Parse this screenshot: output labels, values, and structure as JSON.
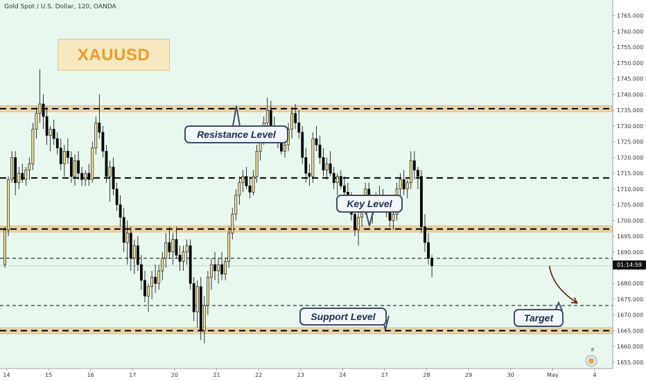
{
  "header": {
    "title": "Gold Spot / U.S. Dollar, 120, OANDA"
  },
  "symbol_label": "XAUUSD",
  "annotations": {
    "resistance": "Resistance Level",
    "key": "Key Level",
    "support": "Support Level",
    "target": "Target"
  },
  "price_tag": "01:14:59",
  "badge_count": "8",
  "colors": {
    "background": "#ffffff",
    "plot_background": "#e9f8ef",
    "zone_fill": "#e8d2a6",
    "bull_candle": "#f1dc9a",
    "bear_candle": "#000000",
    "dashed_line": "#000000",
    "callout_border": "#3b4c66",
    "callout_text": "#1c2d52",
    "symbol_text": "#f09a28",
    "arrow": "#5a1e0a"
  },
  "chart_data": {
    "type": "candlestick",
    "title": "Gold Spot / U.S. Dollar, 120, OANDA",
    "ylim": [
      1653,
      1770
    ],
    "y_ticks": [
      1655,
      1660,
      1665,
      1670,
      1675,
      1680,
      1685,
      1690,
      1695,
      1700,
      1705,
      1710,
      1715,
      1720,
      1725,
      1730,
      1735,
      1740,
      1745,
      1750,
      1755,
      1760,
      1765
    ],
    "y_tick_labels": [
      "1655.000",
      "1660.000",
      "1665.000",
      "1670.000",
      "1675.000",
      "1680.000",
      "1685.000",
      "1690.000",
      "1695.000",
      "1700.000",
      "1705.000",
      "1710.000",
      "1715.000",
      "1720.000",
      "1725.000",
      "1730.000",
      "1735.000",
      "1740.000",
      "1745.000",
      "1750.000",
      "1755.000",
      "1760.000",
      "1765.000"
    ],
    "x_ticks": [
      {
        "label": "14",
        "pos": 0.5
      },
      {
        "label": "15",
        "pos": 12.5
      },
      {
        "label": "16",
        "pos": 24.5
      },
      {
        "label": "17",
        "pos": 36.5
      },
      {
        "label": "20",
        "pos": 48.5
      },
      {
        "label": "21",
        "pos": 60.5
      },
      {
        "label": "22",
        "pos": 72.5
      },
      {
        "label": "23",
        "pos": 84.5
      },
      {
        "label": "24",
        "pos": 96.5
      },
      {
        "label": "27",
        "pos": 108.5
      },
      {
        "label": "28",
        "pos": 120.5
      },
      {
        "label": "29",
        "pos": 132.5
      },
      {
        "label": "30",
        "pos": 144.5
      },
      {
        "label": "May",
        "pos": 156.5
      },
      {
        "label": "4",
        "pos": 168.5
      }
    ],
    "zones": [
      {
        "name": "resistance",
        "low": 1734.5,
        "high": 1736.5
      },
      {
        "name": "key",
        "low": 1696.3,
        "high": 1698.3
      },
      {
        "name": "support",
        "low": 1664.0,
        "high": 1666.0
      }
    ],
    "dashed_levels": [
      1735.5,
      1713.5,
      1697.3,
      1688.0,
      1673.0,
      1665.0
    ],
    "current_price": 1685.6,
    "target_arrow": {
      "from": {
        "bar": 155.6,
        "price": 1685.6
      },
      "to": {
        "bar": 163.5,
        "price": 1673.8
      }
    },
    "candles": [
      [
        1686,
        1698,
        1685,
        1697
      ],
      [
        1697,
        1714,
        1695,
        1713
      ],
      [
        1713,
        1722,
        1712,
        1720
      ],
      [
        1720,
        1722,
        1708,
        1712
      ],
      [
        1712,
        1717,
        1710,
        1715
      ],
      [
        1715,
        1718,
        1712,
        1713
      ],
      [
        1713,
        1717,
        1711,
        1716
      ],
      [
        1716,
        1720,
        1713,
        1718
      ],
      [
        1718,
        1731,
        1716,
        1729
      ],
      [
        1729,
        1736,
        1726,
        1734
      ],
      [
        1734,
        1748,
        1731,
        1737
      ],
      [
        1737,
        1740,
        1729,
        1733
      ],
      [
        1733,
        1736,
        1724,
        1727
      ],
      [
        1727,
        1730,
        1722,
        1729
      ],
      [
        1729,
        1732,
        1724,
        1726
      ],
      [
        1726,
        1728,
        1721,
        1723
      ],
      [
        1723,
        1726,
        1716,
        1718
      ],
      [
        1718,
        1724,
        1714,
        1722
      ],
      [
        1722,
        1726,
        1718,
        1720
      ],
      [
        1720,
        1722,
        1712,
        1714
      ],
      [
        1714,
        1721,
        1711,
        1719
      ],
      [
        1719,
        1722,
        1713,
        1715
      ],
      [
        1715,
        1717,
        1711,
        1713
      ],
      [
        1713,
        1716,
        1711,
        1715
      ],
      [
        1715,
        1718,
        1711,
        1713
      ],
      [
        1713,
        1725,
        1712,
        1723
      ],
      [
        1723,
        1733,
        1721,
        1731
      ],
      [
        1731,
        1740,
        1726,
        1728
      ],
      [
        1728,
        1730,
        1720,
        1722
      ],
      [
        1722,
        1724,
        1712,
        1714
      ],
      [
        1714,
        1719,
        1706,
        1717
      ],
      [
        1717,
        1720,
        1708,
        1710
      ],
      [
        1710,
        1712,
        1703,
        1705
      ],
      [
        1705,
        1708,
        1698,
        1701
      ],
      [
        1701,
        1704,
        1690,
        1693
      ],
      [
        1693,
        1700,
        1686,
        1696
      ],
      [
        1696,
        1698,
        1684,
        1688
      ],
      [
        1688,
        1694,
        1683,
        1692
      ],
      [
        1692,
        1695,
        1684,
        1686
      ],
      [
        1686,
        1689,
        1678,
        1681
      ],
      [
        1681,
        1684,
        1674,
        1676
      ],
      [
        1676,
        1680,
        1671,
        1679
      ],
      [
        1679,
        1684,
        1675,
        1682
      ],
      [
        1682,
        1686,
        1677,
        1680
      ],
      [
        1680,
        1686,
        1678,
        1684
      ],
      [
        1684,
        1690,
        1681,
        1688
      ],
      [
        1688,
        1696,
        1685,
        1693
      ],
      [
        1693,
        1698,
        1688,
        1690
      ],
      [
        1690,
        1696,
        1686,
        1694
      ],
      [
        1694,
        1698,
        1688,
        1689
      ],
      [
        1689,
        1692,
        1684,
        1687
      ],
      [
        1687,
        1692,
        1684,
        1690
      ],
      [
        1690,
        1694,
        1686,
        1692
      ],
      [
        1692,
        1694,
        1678,
        1680
      ],
      [
        1680,
        1682,
        1668,
        1671
      ],
      [
        1671,
        1681,
        1666,
        1679
      ],
      [
        1679,
        1682,
        1662,
        1665
      ],
      [
        1665,
        1676,
        1661,
        1673
      ],
      [
        1673,
        1684,
        1670,
        1682
      ],
      [
        1682,
        1688,
        1678,
        1686
      ],
      [
        1686,
        1690,
        1681,
        1684
      ],
      [
        1684,
        1688,
        1680,
        1686
      ],
      [
        1686,
        1690,
        1681,
        1683
      ],
      [
        1683,
        1688,
        1681,
        1687
      ],
      [
        1687,
        1698,
        1685,
        1696
      ],
      [
        1696,
        1704,
        1694,
        1702
      ],
      [
        1702,
        1710,
        1700,
        1708
      ],
      [
        1708,
        1714,
        1705,
        1712
      ],
      [
        1712,
        1716,
        1709,
        1714
      ],
      [
        1714,
        1717,
        1710,
        1711
      ],
      [
        1711,
        1714,
        1707,
        1709
      ],
      [
        1709,
        1716,
        1708,
        1714
      ],
      [
        1714,
        1724,
        1712,
        1722
      ],
      [
        1722,
        1729,
        1719,
        1727
      ],
      [
        1727,
        1733,
        1724,
        1731
      ],
      [
        1731,
        1739,
        1728,
        1735
      ],
      [
        1735,
        1738,
        1728,
        1730
      ],
      [
        1730,
        1733,
        1725,
        1727
      ],
      [
        1727,
        1730,
        1723,
        1725
      ],
      [
        1725,
        1727,
        1721,
        1722
      ],
      [
        1722,
        1726,
        1720,
        1724
      ],
      [
        1724,
        1731,
        1722,
        1729
      ],
      [
        1729,
        1736,
        1726,
        1734
      ],
      [
        1734,
        1737,
        1729,
        1731
      ],
      [
        1731,
        1735,
        1726,
        1728
      ],
      [
        1728,
        1730,
        1718,
        1720
      ],
      [
        1720,
        1723,
        1712,
        1715
      ],
      [
        1715,
        1718,
        1711,
        1714
      ],
      [
        1714,
        1728,
        1712,
        1726
      ],
      [
        1726,
        1730,
        1722,
        1724
      ],
      [
        1724,
        1727,
        1718,
        1720
      ],
      [
        1720,
        1723,
        1714,
        1716
      ],
      [
        1716,
        1720,
        1713,
        1718
      ],
      [
        1718,
        1722,
        1714,
        1715
      ],
      [
        1715,
        1717,
        1710,
        1712
      ],
      [
        1712,
        1715,
        1708,
        1714
      ],
      [
        1714,
        1716,
        1710,
        1711
      ],
      [
        1711,
        1714,
        1707,
        1709
      ],
      [
        1709,
        1712,
        1704,
        1706
      ],
      [
        1706,
        1709,
        1700,
        1702
      ],
      [
        1702,
        1704,
        1695,
        1697
      ],
      [
        1697,
        1703,
        1692,
        1701
      ],
      [
        1701,
        1708,
        1698,
        1705
      ],
      [
        1705,
        1712,
        1702,
        1710
      ],
      [
        1710,
        1712,
        1700,
        1702
      ],
      [
        1702,
        1707,
        1699,
        1705
      ],
      [
        1705,
        1709,
        1703,
        1707
      ],
      [
        1707,
        1711,
        1704,
        1708
      ],
      [
        1708,
        1710,
        1703,
        1705
      ],
      [
        1705,
        1708,
        1701,
        1703
      ],
      [
        1703,
        1706,
        1698,
        1700
      ],
      [
        1700,
        1704,
        1697,
        1702
      ],
      [
        1702,
        1712,
        1700,
        1710
      ],
      [
        1710,
        1715,
        1708,
        1713
      ],
      [
        1713,
        1716,
        1708,
        1710
      ],
      [
        1710,
        1713,
        1707,
        1712
      ],
      [
        1712,
        1722,
        1710,
        1719
      ],
      [
        1719,
        1722,
        1713,
        1716
      ],
      [
        1716,
        1717,
        1710,
        1714
      ],
      [
        1714,
        1716,
        1696,
        1698
      ],
      [
        1698,
        1702,
        1690,
        1693
      ],
      [
        1693,
        1696,
        1686,
        1688
      ],
      [
        1688,
        1689,
        1682,
        1685.6
      ]
    ]
  }
}
